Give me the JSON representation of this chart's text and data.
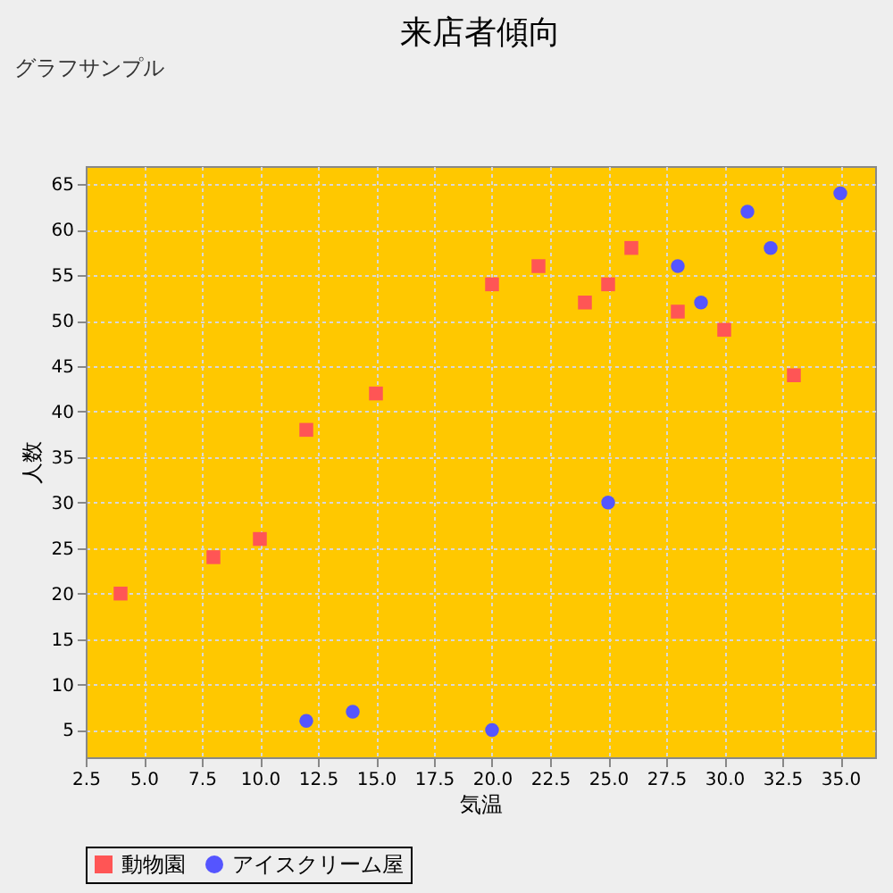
{
  "chart_data": {
    "type": "scatter",
    "title": "来店者傾向",
    "xlabel": "気温",
    "ylabel": "人数",
    "annotations": [
      "グラフサンプル"
    ],
    "xlim": [
      2.5,
      36.5
    ],
    "ylim": [
      2,
      67
    ],
    "xticks": [
      {
        "value": 2.5,
        "label": "2.5"
      },
      {
        "value": 5,
        "label": "5.0"
      },
      {
        "value": 7.5,
        "label": "7.5"
      },
      {
        "value": 10,
        "label": "10.0"
      },
      {
        "value": 12.5,
        "label": "12.5"
      },
      {
        "value": 15,
        "label": "15.0"
      },
      {
        "value": 17.5,
        "label": "17.5"
      },
      {
        "value": 20,
        "label": "20.0"
      },
      {
        "value": 22.5,
        "label": "22.5"
      },
      {
        "value": 25,
        "label": "25.0"
      },
      {
        "value": 27.5,
        "label": "27.5"
      },
      {
        "value": 30,
        "label": "30.0"
      },
      {
        "value": 32.5,
        "label": "32.5"
      },
      {
        "value": 35,
        "label": "35.0"
      }
    ],
    "yticks": [
      5,
      10,
      15,
      20,
      25,
      30,
      35,
      40,
      45,
      50,
      55,
      60,
      65
    ],
    "grid": true,
    "legend": "bottom",
    "series": [
      {
        "name": "動物園",
        "color": "#ff5555",
        "marker": "square",
        "x": [
          4,
          8,
          10,
          12,
          15,
          20,
          22,
          24,
          25,
          26,
          28,
          30,
          33
        ],
        "values": [
          20,
          24,
          26,
          38,
          42,
          54,
          56,
          52,
          54,
          58,
          51,
          49,
          44
        ]
      },
      {
        "name": "アイスクリーム屋",
        "color": "#5555ff",
        "marker": "circle",
        "x": [
          12,
          14,
          20,
          25,
          28,
          29,
          31,
          32,
          35
        ],
        "values": [
          6,
          7,
          5,
          30,
          56,
          52,
          62,
          58,
          64
        ]
      }
    ]
  }
}
